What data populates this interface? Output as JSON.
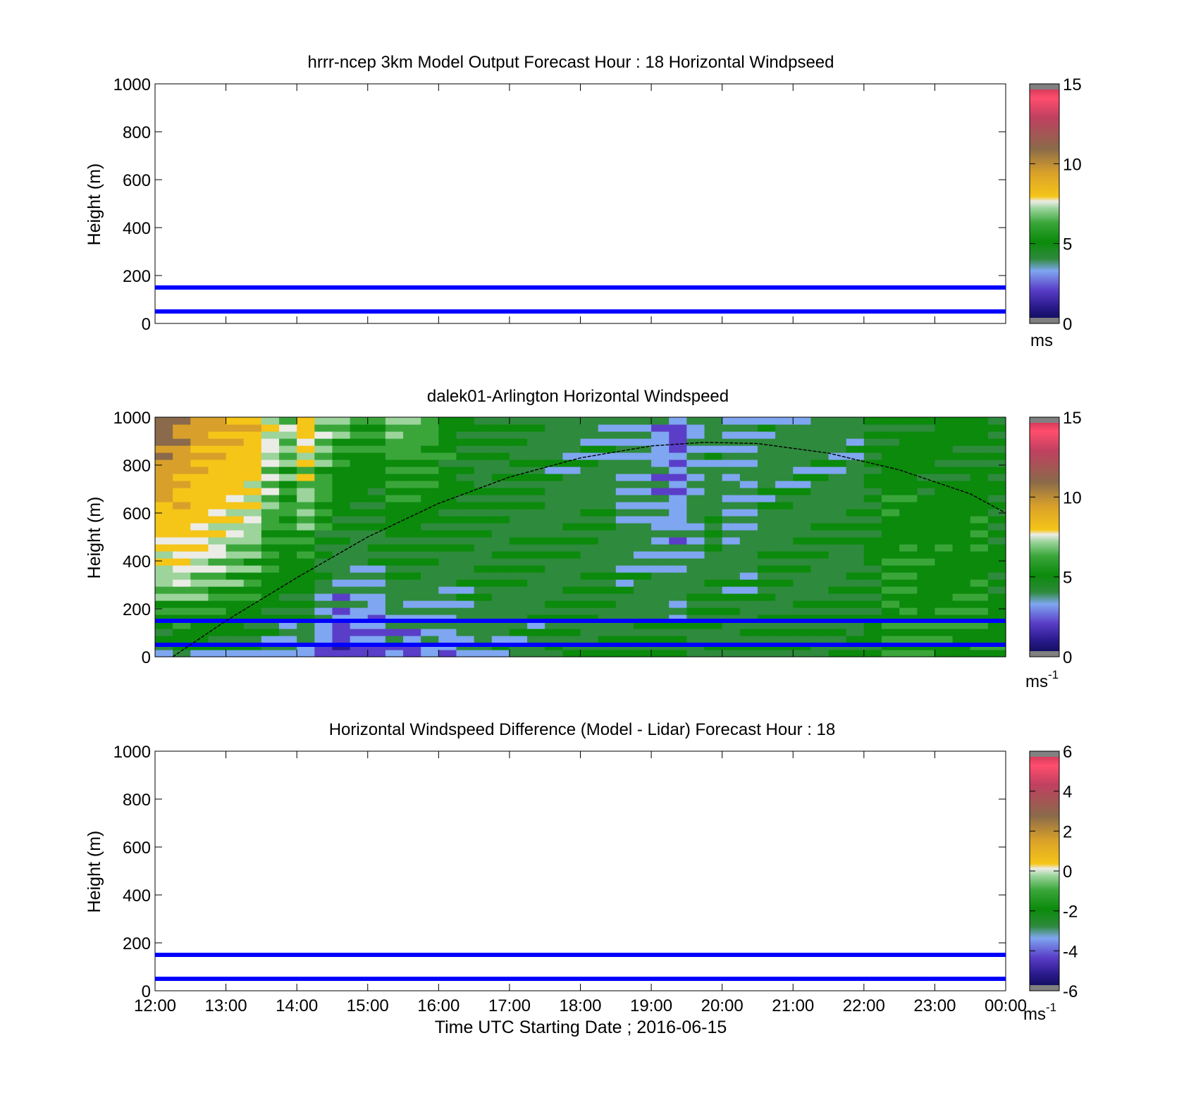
{
  "figure": {
    "xlabel": "Time UTC  Starting Date ; 2016-06-15",
    "x_ticks": [
      "12:00",
      "13:00",
      "14:00",
      "15:00",
      "16:00",
      "17:00",
      "18:00",
      "19:00",
      "20:00",
      "21:00",
      "22:00",
      "23:00",
      "00:00"
    ]
  },
  "colors": {
    "line": "#0000ff",
    "colormap": [
      "#0a0a50",
      "#2a1a8c",
      "#5a3ec8",
      "#7fa6f0",
      "#2e8a3c",
      "#0b8a0b",
      "#3aa63a",
      "#9cd49c",
      "#ecece6",
      "#f5c518",
      "#d8a02a",
      "#8a6a4a",
      "#c04060",
      "#ff4d6d"
    ]
  },
  "chart_data": [
    {
      "type": "heatmap",
      "title": "hrrr-ncep 3km Model Output   Forecast Hour : 18 Horizontal Windpseed",
      "ylabel": "Height (m)",
      "ylim": [
        0,
        1000
      ],
      "y_ticks": [
        "0",
        "200",
        "400",
        "600",
        "800",
        "1000"
      ],
      "xlim": [
        "12:00",
        "00:00"
      ],
      "colorbar": {
        "min": 0,
        "max": 15,
        "ticks": [
          "0",
          "5",
          "10",
          "15"
        ],
        "unit": "ms"
      },
      "reference_lines_height_m": [
        50,
        150
      ],
      "values": []
    },
    {
      "type": "heatmap",
      "title": "dalek01-Arlington  Horizontal Windspeed",
      "ylabel": "Height (m)",
      "ylim": [
        0,
        1000
      ],
      "y_ticks": [
        "0",
        "200",
        "400",
        "600",
        "800",
        "1000"
      ],
      "xlim": [
        "12:00",
        "00:00"
      ],
      "colorbar": {
        "min": 0,
        "max": 15,
        "ticks": [
          "0",
          "5",
          "10",
          "15"
        ],
        "unit": "ms",
        "unit_exponent": "-1"
      },
      "reference_lines_height_m": [
        50,
        150
      ],
      "boundary_layer_curve": {
        "x": [
          "12:15",
          "13:00",
          "14:00",
          "15:00",
          "16:00",
          "17:00",
          "18:00",
          "19:00",
          "19:45",
          "20:30",
          "21:30",
          "22:30",
          "23:30",
          "00:00"
        ],
        "y": [
          0,
          150,
          330,
          500,
          640,
          750,
          830,
          880,
          895,
          890,
          850,
          780,
          680,
          600
        ]
      },
      "columns": {
        "x": [
          "12:00",
          "12:15",
          "12:30",
          "12:45",
          "13:00",
          "13:15",
          "13:30",
          "13:45",
          "14:00",
          "14:15",
          "14:30",
          "14:45",
          "15:00",
          "15:15",
          "15:30",
          "15:45",
          "16:00",
          "16:15",
          "16:30",
          "16:45",
          "17:00",
          "17:15",
          "17:30",
          "17:45",
          "18:00",
          "18:15",
          "18:30",
          "18:45",
          "19:00",
          "19:15",
          "19:30",
          "19:45",
          "20:00",
          "20:15",
          "20:30",
          "20:45",
          "21:00",
          "21:15",
          "21:30",
          "21:45",
          "22:00",
          "22:15",
          "22:30",
          "22:45",
          "23:00",
          "23:15",
          "23:30",
          "23:45"
        ],
        "lower_ms": [
          4.0,
          4.5,
          4.5,
          4.5,
          4.5,
          4.5,
          4.0,
          3.5,
          3.5,
          2.5,
          2.0,
          2.5,
          2.5,
          3.0,
          3.0,
          3.5,
          3.5,
          4.0,
          4.5,
          4.5,
          4.5,
          4.5,
          5.0,
          5.0,
          5.0,
          5.0,
          5.0,
          5.0,
          5.0,
          5.0,
          5.0,
          5.0,
          5.0,
          5.0,
          5.0,
          5.0,
          5.0,
          5.0,
          5.0,
          5.0,
          5.5,
          6.5,
          6.5,
          6.0,
          6.0,
          6.0,
          6.5,
          6.0
        ],
        "upper_ms": [
          11.5,
          11.0,
          10.5,
          10.0,
          9.5,
          9.0,
          8.0,
          7.5,
          8.5,
          7.5,
          7.0,
          6.5,
          6.5,
          7.0,
          7.0,
          6.5,
          6.0,
          5.5,
          5.0,
          5.0,
          5.0,
          5.0,
          4.5,
          4.5,
          4.5,
          4.5,
          4.0,
          4.0,
          3.5,
          3.0,
          4.0,
          4.5,
          4.0,
          4.0,
          4.5,
          4.5,
          4.5,
          4.5,
          4.5,
          4.5,
          5.0,
          5.5,
          5.5,
          5.5,
          5.5,
          5.5,
          5.5,
          5.0
        ]
      }
    },
    {
      "type": "heatmap",
      "title": "Horizontal Windspeed Difference (Model - Lidar) Forecast Hour : 18",
      "ylabel": "Height (m)",
      "ylim": [
        0,
        1000
      ],
      "y_ticks": [
        "0",
        "200",
        "400",
        "600",
        "800",
        "1000"
      ],
      "xlim": [
        "12:00",
        "00:00"
      ],
      "colorbar": {
        "min": -6,
        "max": 6,
        "ticks": [
          "-6",
          "-4",
          "-2",
          "0",
          "2",
          "4",
          "6"
        ],
        "unit": "ms",
        "unit_exponent": "-1"
      },
      "reference_lines_height_m": [
        50,
        150
      ],
      "values": []
    }
  ]
}
